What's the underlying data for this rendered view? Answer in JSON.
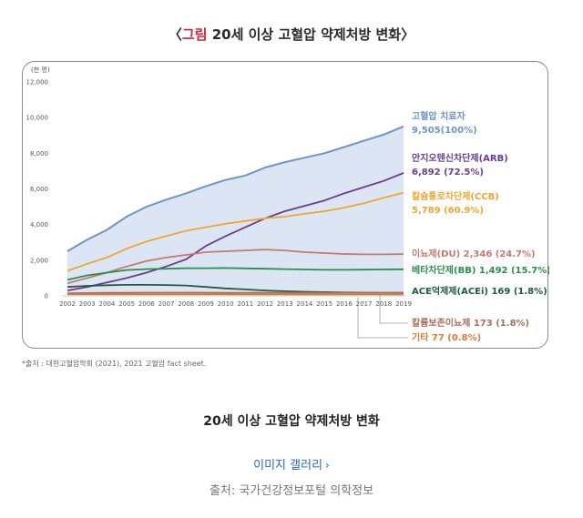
{
  "figure": {
    "title_open": "〈",
    "title_accent": "그림",
    "title_text": " 20세 이상 고혈압 약제처방 변화",
    "title_close": "〉"
  },
  "chart_data": {
    "type": "line",
    "unit_label": "(천 명)",
    "ylim": [
      0,
      12000
    ],
    "yticks": [
      "0",
      "2,000",
      "4,000",
      "6,000",
      "8,000",
      "10,000",
      "12,000"
    ],
    "grid": false,
    "categories": [
      "2002",
      "2003",
      "2004",
      "2005",
      "2006",
      "2007",
      "2008",
      "2009",
      "2010",
      "2011",
      "2012",
      "2013",
      "2014",
      "2015",
      "2016",
      "2017",
      "2018",
      "2019"
    ],
    "series": [
      {
        "name": "고혈압 치료자",
        "label_value": "9,505(100%)",
        "color": "#6f94c9",
        "fill": "#dce5f3",
        "values": [
          2500,
          3150,
          3700,
          4450,
          5000,
          5400,
          5750,
          6150,
          6500,
          6750,
          7200,
          7500,
          7750,
          8000,
          8350,
          8700,
          9050,
          9505
        ]
      },
      {
        "name": "안지오텐신차단제(ARB)",
        "label_value": "6,892 (72.5%)",
        "color": "#6a3d8f",
        "values": [
          300,
          500,
          750,
          1000,
          1300,
          1650,
          2050,
          2800,
          3350,
          3850,
          4350,
          4750,
          5050,
          5350,
          5750,
          6100,
          6450,
          6892
        ]
      },
      {
        "name": "칼슘통로차단제(CCB)",
        "label_value": "5,789 (60.9%)",
        "color": "#f0a532",
        "values": [
          1400,
          1800,
          2150,
          2650,
          3050,
          3350,
          3650,
          3850,
          4050,
          4200,
          4350,
          4450,
          4600,
          4750,
          4950,
          5200,
          5500,
          5789
        ]
      },
      {
        "name": "이뇨제(DU)",
        "label_value": "2,346 (24.7%)",
        "color": "#c47973",
        "values": [
          700,
          1000,
          1300,
          1650,
          1950,
          2150,
          2300,
          2450,
          2500,
          2550,
          2600,
          2550,
          2450,
          2400,
          2350,
          2330,
          2330,
          2346
        ]
      },
      {
        "name": "베타차단제(BB)",
        "label_value": "1,492 (15.7%)",
        "color": "#2d8d4e",
        "values": [
          900,
          1150,
          1300,
          1450,
          1500,
          1520,
          1550,
          1550,
          1560,
          1540,
          1520,
          1500,
          1480,
          1460,
          1460,
          1470,
          1480,
          1492
        ]
      },
      {
        "name": "ACE억제제(ACEi)",
        "label_value": "169 (1.8%)",
        "color": "#23594a",
        "values": [
          500,
          560,
          600,
          620,
          620,
          610,
          580,
          500,
          420,
          360,
          300,
          260,
          230,
          210,
          190,
          180,
          175,
          169
        ]
      },
      {
        "name": "칼륨보존이뇨제",
        "label_value": "173 (1.8%)",
        "color": "#a8705a",
        "values": [
          150,
          160,
          170,
          175,
          180,
          180,
          180,
          178,
          176,
          175,
          174,
          174,
          173,
          173,
          173,
          173,
          173,
          173
        ]
      },
      {
        "name": "기타",
        "label_value": "77 (0.8%)",
        "color": "#e07a32",
        "values": [
          80,
          80,
          80,
          80,
          80,
          80,
          80,
          80,
          80,
          79,
          79,
          78,
          78,
          78,
          77,
          77,
          77,
          77
        ]
      }
    ]
  },
  "source_note": "*출처 : 대한고혈압학회 (2021), 2021 고혈압 fact sheet.",
  "caption": "20세 이상 고혈압 약제처방 변화",
  "gallery_link": {
    "label": "이미지 갤러리",
    "chevron": "›"
  },
  "credit": "출처: 국가건강정보포털 의학정보"
}
